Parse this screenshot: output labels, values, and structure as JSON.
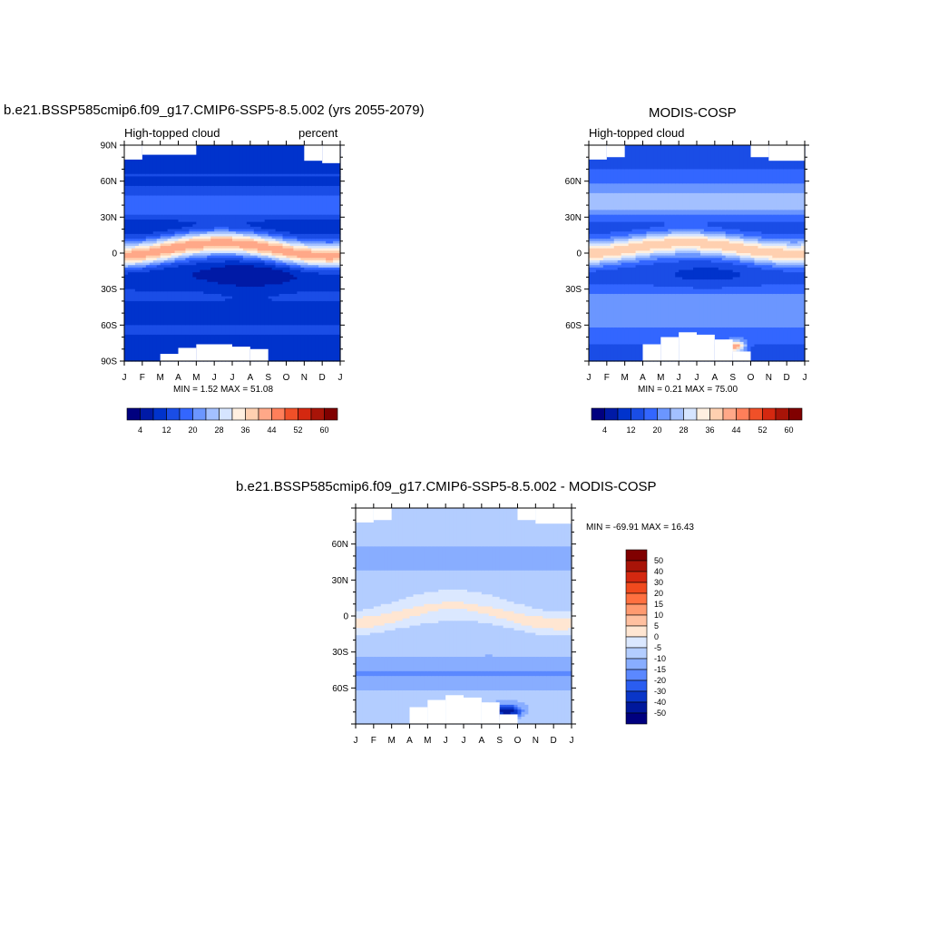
{
  "panels": [
    {
      "title": "b.e21.BSSP585cmip6.f09_g17.CMIP6-SSP5-8.5.002 (yrs 2055-2079)",
      "left_string": "High-topped cloud",
      "right_string": "percent",
      "min_max": "MIN =   1.52 MAX =  51.08",
      "ylabels": [
        "90N",
        "60N",
        "30N",
        "0",
        "30S",
        "60S",
        "90S"
      ]
    },
    {
      "title": "MODIS-COSP",
      "left_string": "High-topped cloud",
      "right_string": "",
      "min_max": "MIN =   0.21 MAX =  75.00",
      "ylabels": [
        "",
        "60N",
        "30N",
        "0",
        "30S",
        "60S",
        ""
      ]
    },
    {
      "title": "b.e21.BSSP585cmip6.f09_g17.CMIP6-SSP5-8.5.002 - MODIS-COSP",
      "left_string": "",
      "right_string": "",
      "min_max": "MIN = -69.91 MAX =  16.43",
      "ylabels": [
        "",
        "60N",
        "30N",
        "0",
        "30S",
        "60S",
        ""
      ]
    }
  ],
  "months": [
    "J",
    "F",
    "M",
    "A",
    "M",
    "J",
    "J",
    "A",
    "S",
    "O",
    "N",
    "D",
    "J"
  ],
  "colorbar_abs": {
    "labels": [
      "4",
      "12",
      "20",
      "28",
      "36",
      "44",
      "52",
      "60"
    ],
    "colors": [
      "#00007f",
      "#001aa6",
      "#0033cc",
      "#1a4de6",
      "#3366ff",
      "#6b96ff",
      "#a3c0ff",
      "#d6e5ff",
      "#fff0e0",
      "#ffd0b0",
      "#ffa888",
      "#ff7f5a",
      "#f05028",
      "#d42810",
      "#a81408",
      "#800000"
    ]
  },
  "colorbar_diff": {
    "labels": [
      "50",
      "40",
      "30",
      "20",
      "15",
      "10",
      "5",
      "0",
      "-5",
      "-10",
      "-15",
      "-20",
      "-30",
      "-40",
      "-50"
    ],
    "colors": [
      "#800000",
      "#a81408",
      "#d42810",
      "#f04a1e",
      "#ff7040",
      "#ff9a70",
      "#ffc0a0",
      "#ffe6d2",
      "#dbe8ff",
      "#b3cdff",
      "#88adff",
      "#5b88ff",
      "#2a5df0",
      "#0a36c8",
      "#00189c",
      "#00007f"
    ]
  },
  "chart_data": [
    {
      "type": "heatmap",
      "title": "b.e21.BSSP585cmip6.f09_g17.CMIP6-SSP5-8.5.002 (yrs 2055-2079)",
      "variable": "High-topped cloud",
      "units": "percent",
      "x": [
        "J",
        "F",
        "M",
        "A",
        "M",
        "J",
        "J",
        "A",
        "S",
        "O",
        "N",
        "D",
        "J"
      ],
      "ylim": [
        -90,
        90
      ],
      "levels": [
        4,
        8,
        12,
        16,
        20,
        24,
        28,
        32,
        36,
        40,
        44,
        48,
        52,
        56,
        60
      ],
      "min": 1.52,
      "max": 51.08
    },
    {
      "type": "heatmap",
      "title": "MODIS-COSP",
      "variable": "High-topped cloud",
      "x": [
        "J",
        "F",
        "M",
        "A",
        "M",
        "J",
        "J",
        "A",
        "S",
        "O",
        "N",
        "D",
        "J"
      ],
      "ylim": [
        -90,
        90
      ],
      "levels": [
        4,
        8,
        12,
        16,
        20,
        24,
        28,
        32,
        36,
        40,
        44,
        48,
        52,
        56,
        60
      ],
      "min": 0.21,
      "max": 75.0
    },
    {
      "type": "heatmap",
      "title": "b.e21.BSSP585cmip6.f09_g17.CMIP6-SSP5-8.5.002 - MODIS-COSP",
      "x": [
        "J",
        "F",
        "M",
        "A",
        "M",
        "J",
        "J",
        "A",
        "S",
        "O",
        "N",
        "D",
        "J"
      ],
      "ylim": [
        -90,
        90
      ],
      "levels": [
        -50,
        -40,
        -30,
        -20,
        -15,
        -10,
        -5,
        0,
        5,
        10,
        15,
        20,
        30,
        40,
        50
      ],
      "min": -69.91,
      "max": 16.43
    }
  ]
}
